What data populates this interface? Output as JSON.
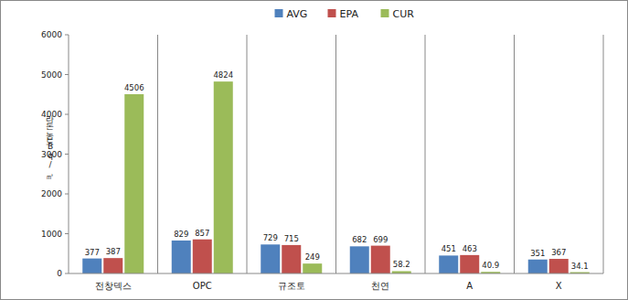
{
  "chart_data": {
    "type": "bar",
    "y_label": "라돈농도Bq/㎥",
    "categories": [
      "전창덱스",
      "OPC",
      "규조토",
      "천연",
      "A",
      "X"
    ],
    "series": [
      {
        "name": "AVG",
        "color": "#4f81bd",
        "values": [
          377,
          829,
          729,
          682,
          451,
          351
        ]
      },
      {
        "name": "EPA",
        "color": "#c0504d",
        "values": [
          387,
          857,
          715,
          699,
          463,
          367
        ]
      },
      {
        "name": "CUR",
        "color": "#9bbb59",
        "values": [
          4506,
          4824,
          249,
          58.2,
          40.9,
          34.1
        ]
      }
    ],
    "ylim": [
      0,
      6000
    ],
    "yticks": [
      0,
      1000,
      2000,
      3000,
      4000,
      5000,
      6000
    ],
    "grid": false,
    "legend": "top",
    "data_labels": true
  }
}
